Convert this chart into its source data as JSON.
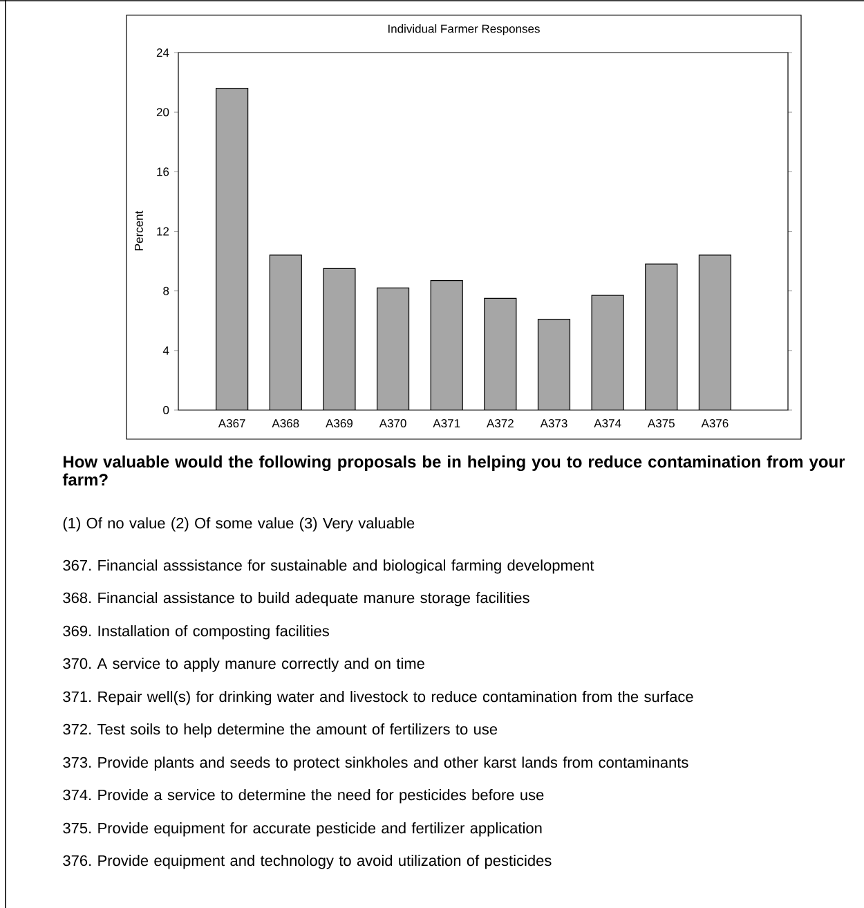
{
  "chart_data": {
    "type": "bar",
    "title": "Individual Farmer Responses",
    "ylabel": "Percent",
    "categories": [
      "A367",
      "A368",
      "A369",
      "A370",
      "A371",
      "A372",
      "A373",
      "A374",
      "A375",
      "A376"
    ],
    "values": [
      21.6,
      10.4,
      9.5,
      8.2,
      8.7,
      7.5,
      6.1,
      7.7,
      9.8,
      10.4
    ],
    "color": "#a6a6a6",
    "ylim": [
      0,
      24
    ],
    "yticks": [
      0,
      4,
      8,
      12,
      16,
      20,
      24
    ],
    "annotations": [
      "How valuable would the following proposals be in helping you to reduce contamination from your farm?",
      "(1) Of no value   (2) Of some value   (3) Very valuable",
      "367. Financial asssistance for sustainable and biological farming development",
      "368. Financial assistance to build  adequate manure storage facilities",
      "369. Installation of composting facilities",
      "370.  A service to apply manure correctly and on time",
      "371. Repair well(s) for drinking water and livestock to reduce contamination from the surface",
      "372. Test soils to help determine the amount of fertilizers to use",
      "373. Provide plants and seeds to protect sinkholes and other karst lands from contaminants",
      "374. Provide a service to determine the need for pesticides before use",
      "375. Provide equipment for accurate pesticide and fertilizer application",
      "376. Provide equipment and technology to avoid utilization of pesticides"
    ]
  }
}
